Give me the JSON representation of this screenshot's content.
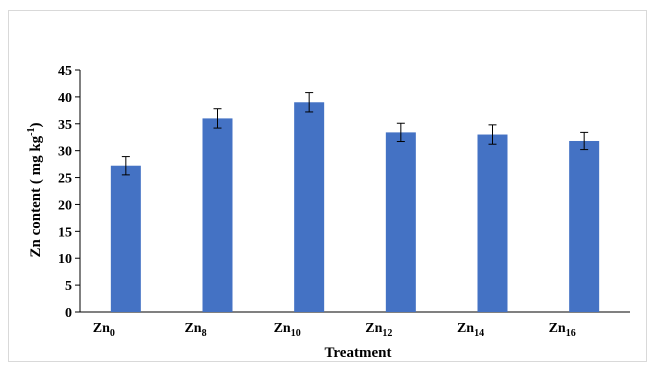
{
  "chart_data": {
    "type": "bar",
    "title": "",
    "xlabel": "Treatment",
    "ylabel": {
      "prefix": "Zn content ( mg kg",
      "superscript": "-1",
      "suffix": ")"
    },
    "categories": [
      {
        "base": "Zn",
        "sub": "0"
      },
      {
        "base": "Zn",
        "sub": "8"
      },
      {
        "base": "Zn",
        "sub": "10"
      },
      {
        "base": "Zn",
        "sub": "12"
      },
      {
        "base": "Zn",
        "sub": "14"
      },
      {
        "base": "Zn",
        "sub": "16"
      }
    ],
    "values": [
      27.2,
      36.0,
      39.0,
      33.4,
      33.0,
      31.8
    ],
    "error": [
      1.7,
      1.8,
      1.8,
      1.7,
      1.8,
      1.6
    ],
    "ylim": [
      0,
      45
    ],
    "yticks": [
      0,
      5,
      10,
      15,
      20,
      25,
      30,
      35,
      40,
      45
    ],
    "bar_color": "#4472c4",
    "grid": false,
    "legend": "none"
  }
}
